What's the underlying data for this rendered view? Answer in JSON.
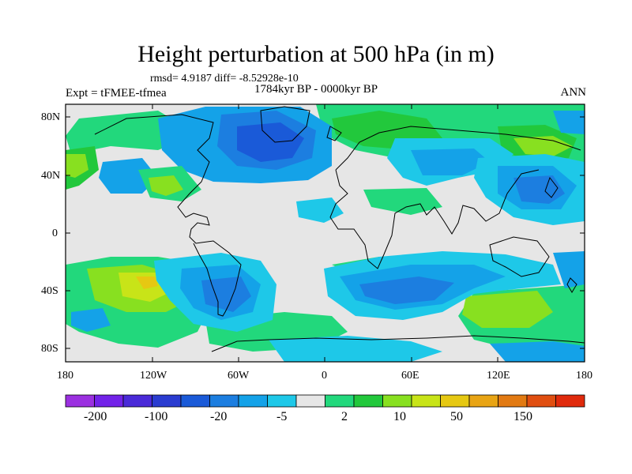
{
  "figure": {
    "title": "Height perturbation at 500 hPa (in m)",
    "stats": "rmsd= 4.9187 diff= -8.52928e-10",
    "period": "1784kyr BP - 0000kyr BP",
    "experiment": "Expt = tFMEE-tfmea",
    "season": "ANN"
  },
  "axes": {
    "lat_labels": [
      "80N",
      "40N",
      "0",
      "40S",
      "80S"
    ],
    "lon_labels": [
      "180",
      "120W",
      "60W",
      "0",
      "60E",
      "120E",
      "180"
    ]
  },
  "colorbar": {
    "labels": [
      "-200",
      "-100",
      "-20",
      "-5",
      "2",
      "10",
      "50",
      "150"
    ],
    "colors": [
      "#9b30e0",
      "#7222e8",
      "#4a2ad8",
      "#2a3cd0",
      "#1a5ad8",
      "#1c7ee0",
      "#14a2e8",
      "#1ec8e8",
      "#e6e6e6",
      "#22d87c",
      "#22c83c",
      "#88e020",
      "#c8e418",
      "#e6c812",
      "#e8a414",
      "#e27a12",
      "#e04e10",
      "#e02a0c"
    ]
  },
  "chart_data": {
    "type": "heatmap",
    "title": "Height perturbation at 500 hPa (in m)",
    "x_range": [
      -180,
      180
    ],
    "y_range": [
      -90,
      90
    ],
    "x_ticks": [
      -180,
      -120,
      -60,
      0,
      60,
      120,
      180
    ],
    "y_ticks": [
      80,
      40,
      0,
      -40,
      -80
    ],
    "contour_levels": [
      -200,
      -100,
      -20,
      -5,
      2,
      10,
      50,
      150
    ],
    "features": [
      {
        "label": "N America / N Atlantic low",
        "lon": [
          -110,
          0
        ],
        "lat": [
          28,
          80
        ],
        "value": -20
      },
      {
        "label": "N Atlantic core low",
        "lon": [
          -80,
          -20
        ],
        "lat": [
          45,
          72
        ],
        "value": -30
      },
      {
        "label": "W Pacific / Asia low",
        "lon": [
          40,
          150
        ],
        "lat": [
          10,
          60
        ],
        "value": -8
      },
      {
        "label": "Japan core low",
        "lon": [
          110,
          150
        ],
        "lat": [
          20,
          45
        ],
        "value": -25
      },
      {
        "label": "Eurasia high",
        "lon": [
          10,
          130
        ],
        "lat": [
          50,
          80
        ],
        "value": 6
      },
      {
        "label": "S Pacific high",
        "lon": [
          -160,
          -100
        ],
        "lat": [
          -60,
          -20
        ],
        "value": 30
      },
      {
        "label": "S America low",
        "lon": [
          -95,
          -25
        ],
        "lat": [
          -65,
          -15
        ],
        "value": -25
      },
      {
        "label": "S Indian Ocean low",
        "lon": [
          20,
          120
        ],
        "lat": [
          -62,
          -28
        ],
        "value": -25
      },
      {
        "label": "S of Australia high",
        "lon": [
          110,
          170
        ],
        "lat": [
          -65,
          -35
        ],
        "value": 25
      }
    ]
  }
}
